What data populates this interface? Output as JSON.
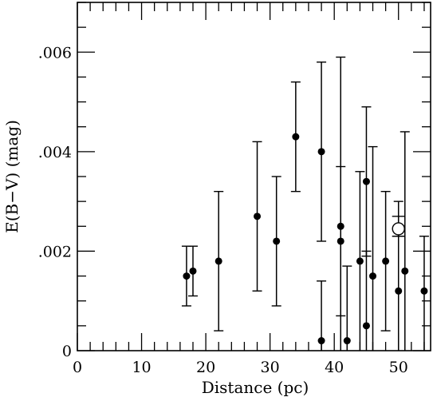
{
  "chart_data": {
    "type": "scatter",
    "title": "",
    "xlabel": "Distance (pc)",
    "ylabel": "E(B−V) (mag)",
    "xlim": [
      0,
      55
    ],
    "ylim": [
      0,
      0.007
    ],
    "x_ticks": [
      0,
      10,
      20,
      30,
      40,
      50
    ],
    "x_tick_labels": [
      "0",
      "10",
      "20",
      "30",
      "40",
      "50"
    ],
    "y_ticks": [
      0,
      0.002,
      0.004,
      0.006
    ],
    "y_tick_labels": [
      "0",
      ".002",
      ".004",
      ".006"
    ],
    "grid": false,
    "series": [
      {
        "marker": "filled-circle",
        "points": [
          {
            "x": 17.0,
            "y": 0.0015,
            "yerr_low": 0.0009,
            "yerr_high": 0.0021
          },
          {
            "x": 18.0,
            "y": 0.0016,
            "yerr_low": 0.0011,
            "yerr_high": 0.0021
          },
          {
            "x": 22.0,
            "y": 0.0018,
            "yerr_low": 0.0004,
            "yerr_high": 0.0032
          },
          {
            "x": 28.0,
            "y": 0.0027,
            "yerr_low": 0.0012,
            "yerr_high": 0.0042
          },
          {
            "x": 31.0,
            "y": 0.0022,
            "yerr_low": 0.0009,
            "yerr_high": 0.0035
          },
          {
            "x": 34.0,
            "y": 0.0043,
            "yerr_low": 0.0032,
            "yerr_high": 0.0054
          },
          {
            "x": 38.0,
            "y": 0.004,
            "yerr_low": 0.0022,
            "yerr_high": 0.0058
          },
          {
            "x": 38.0,
            "y": 0.0002,
            "yerr_low": 0.0,
            "yerr_high": 0.0014
          },
          {
            "x": 41.0,
            "y": 0.0025,
            "yerr_low": 0.0,
            "yerr_high": 0.0059
          },
          {
            "x": 41.0,
            "y": 0.0022,
            "yerr_low": 0.0007,
            "yerr_high": 0.0037
          },
          {
            "x": 42.0,
            "y": 0.0002,
            "yerr_low": 0.0,
            "yerr_high": 0.0017
          },
          {
            "x": 44.0,
            "y": 0.0018,
            "yerr_low": 0.0,
            "yerr_high": 0.0036
          },
          {
            "x": 45.0,
            "y": 0.0034,
            "yerr_low": 0.0019,
            "yerr_high": 0.0049
          },
          {
            "x": 45.0,
            "y": 0.0005,
            "yerr_low": 0.0,
            "yerr_high": 0.002
          },
          {
            "x": 46.0,
            "y": 0.0015,
            "yerr_low": 0.0,
            "yerr_high": 0.0041
          },
          {
            "x": 48.0,
            "y": 0.0018,
            "yerr_low": 0.0004,
            "yerr_high": 0.0032
          },
          {
            "x": 50.0,
            "y": 0.0012,
            "yerr_low": 0.0,
            "yerr_high": 0.003
          },
          {
            "x": 51.0,
            "y": 0.0016,
            "yerr_low": 0.0,
            "yerr_high": 0.0044
          },
          {
            "x": 54.0,
            "y": 0.0012,
            "yerr_low": 0.0,
            "yerr_high": 0.0023
          }
        ]
      },
      {
        "marker": "open-circle",
        "points": [
          {
            "x": 50.0,
            "y": 0.00245,
            "yerr_low": 0.0023,
            "yerr_high": 0.0027
          }
        ]
      }
    ]
  }
}
